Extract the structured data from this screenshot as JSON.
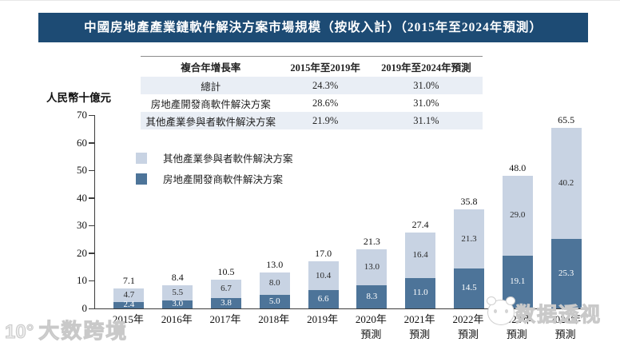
{
  "title": "中國房地產產業鏈軟件解決方案市場規模（按收入計）（2015年至2024年預測）",
  "cagr_table": {
    "headers": [
      "複合年增長率",
      "2015年至2019年",
      "2019年至2024年預測"
    ],
    "rows": [
      {
        "label": "總計",
        "cagr_2015_2019": "24.3%",
        "cagr_2019_2024": "31.0%"
      },
      {
        "label": "房地產開發商軟件解決方案",
        "cagr_2015_2019": "28.6%",
        "cagr_2019_2024": "31.0%"
      },
      {
        "label": "其他產業參與者軟件解決方案",
        "cagr_2015_2019": "21.9%",
        "cagr_2019_2024": "31.1%"
      }
    ]
  },
  "legend": [
    {
      "label": "其他產業參與者軟件解決方案",
      "color": "#c8d3e3"
    },
    {
      "label": "房地產開發商軟件解決方案",
      "color": "#4d7499"
    }
  ],
  "chart_data": {
    "type": "bar",
    "stacked": true,
    "title": "中國房地產產業鏈軟件解決方案市場規模（按收入計）（2015年至2024年預測）",
    "ylabel": "人民幣十億元",
    "ylim": [
      0,
      70
    ],
    "yticks": [
      0,
      10,
      20,
      30,
      40,
      50,
      60,
      70
    ],
    "grid": false,
    "legend_position": "inside-upper-left",
    "categories": [
      "2015年",
      "2016年",
      "2017年",
      "2018年",
      "2019年",
      "2020年",
      "2021年",
      "2022年",
      "2023年",
      "2024年"
    ],
    "category_sublabels": [
      "",
      "",
      "",
      "",
      "",
      "預測",
      "預測",
      "預測",
      "預測",
      "預測"
    ],
    "series": [
      {
        "name": "房地產開發商軟件解決方案",
        "color": "#4d7499",
        "values": [
          2.4,
          3.0,
          3.8,
          5.0,
          6.6,
          8.3,
          11.0,
          14.5,
          19.1,
          25.3
        ]
      },
      {
        "name": "其他產業參與者軟件解決方案",
        "color": "#c8d3e3",
        "values": [
          4.7,
          5.5,
          6.7,
          8.0,
          10.4,
          13.0,
          16.4,
          21.3,
          29.0,
          40.2
        ]
      }
    ],
    "totals": [
      7.1,
      8.4,
      10.5,
      13.0,
      17.0,
      21.3,
      27.4,
      35.8,
      48.0,
      65.5
    ]
  },
  "colors": {
    "banner_bg": "#1d4b74",
    "banner_text": "#ffffff",
    "table_row_shade": "#e9eef5",
    "bar_dark": "#4d7499",
    "bar_light": "#c8d3e3"
  },
  "watermarks": {
    "bottom_left_logo": "10°",
    "bottom_left": "大数跨境",
    "bottom_right": "数据透视"
  }
}
